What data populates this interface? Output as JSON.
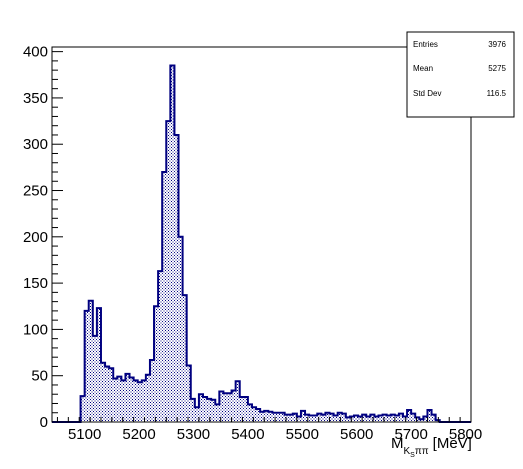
{
  "chart_data": {
    "type": "bar",
    "style": "root-histogram",
    "colors": {
      "line": "#000080",
      "fill_pattern": "#000080",
      "frame": "#000000"
    },
    "xlabel_main": "M",
    "xlabel_sub1": "K",
    "xlabel_subsub": "S",
    "xlabel_sub2": "ππ",
    "xlabel_unit": "[MeV]",
    "xlim": [
      5040,
      5810
    ],
    "ylim": [
      0,
      405
    ],
    "x_ticks": [
      5100,
      5200,
      5300,
      5400,
      5500,
      5600,
      5700,
      5800
    ],
    "y_ticks": [
      0,
      50,
      100,
      150,
      200,
      250,
      300,
      350,
      400
    ],
    "x_tick_labels": [
      "5100",
      "5200",
      "5300",
      "5400",
      "5500",
      "5600",
      "5700",
      "5800"
    ],
    "y_tick_labels": [
      "0",
      "50",
      "100",
      "150",
      "200",
      "250",
      "300",
      "350",
      "400"
    ],
    "bin_width": 7.5,
    "bin_starts": [
      5092.5,
      5100,
      5107.5,
      5115,
      5122.5,
      5130,
      5137.5,
      5145,
      5152.5,
      5160,
      5167.5,
      5175,
      5182.5,
      5190,
      5197.5,
      5205,
      5212.5,
      5220,
      5227.5,
      5235,
      5242.5,
      5250,
      5257.5,
      5265,
      5272.5,
      5280,
      5287.5,
      5295,
      5302.5,
      5310,
      5317.5,
      5325,
      5332.5,
      5340,
      5347.5,
      5355,
      5362.5,
      5370,
      5377.5,
      5385,
      5392.5,
      5400,
      5407.5,
      5415,
      5422.5,
      5430,
      5437.5,
      5445,
      5452.5,
      5460,
      5467.5,
      5475,
      5482.5,
      5490,
      5497.5,
      5505,
      5512.5,
      5520,
      5527.5,
      5535,
      5542.5,
      5550,
      5557.5,
      5565,
      5572.5,
      5580,
      5587.5,
      5595,
      5602.5,
      5610,
      5617.5,
      5625,
      5632.5,
      5640,
      5647.5,
      5655,
      5662.5,
      5670,
      5677.5,
      5685,
      5692.5,
      5700,
      5707.5,
      5715,
      5722.5,
      5730,
      5737.5,
      5745,
      5752.5
    ],
    "values": [
      28,
      120,
      131,
      93,
      123,
      64,
      60,
      58,
      47,
      49,
      45,
      52,
      48,
      45,
      43,
      45,
      51,
      67,
      125,
      163,
      270,
      325,
      385,
      310,
      200,
      137,
      61,
      25,
      16,
      30,
      27,
      25,
      24,
      19,
      33,
      31,
      31,
      34,
      44,
      27,
      27,
      19,
      16,
      14,
      11,
      12,
      11,
      10,
      10,
      10,
      8,
      8,
      9,
      6,
      12,
      8,
      7,
      7,
      9,
      8,
      10,
      9,
      7,
      10,
      9,
      5,
      6,
      7,
      6,
      8,
      6,
      8,
      6,
      7,
      8,
      7,
      8,
      7,
      9,
      6,
      13,
      9,
      5,
      3,
      6,
      13,
      8,
      2,
      0
    ]
  },
  "stats_box": {
    "rows": [
      {
        "label": "Entries",
        "value": "3976"
      },
      {
        "label": "Mean",
        "value": "5275"
      },
      {
        "label": "Std Dev",
        "value": "116.5"
      }
    ]
  }
}
